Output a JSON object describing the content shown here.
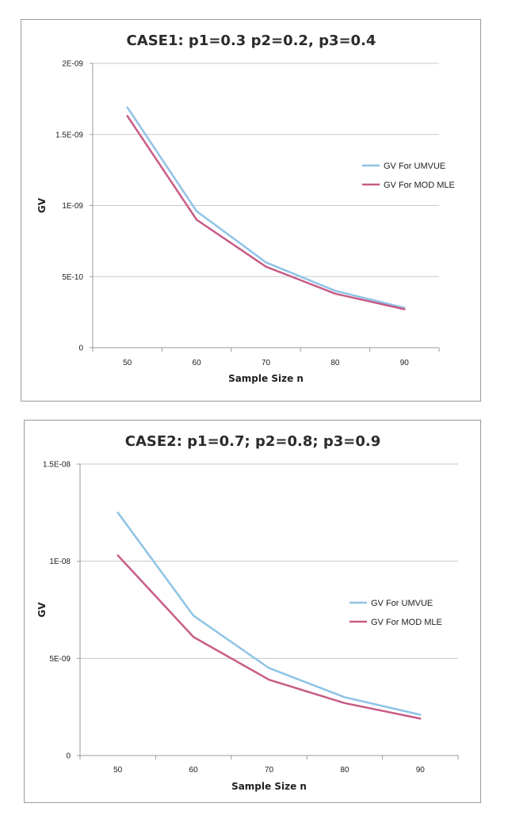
{
  "chart_data": [
    {
      "type": "line",
      "title": "CASE1: p1=0.3 p2=0.2, p3=0.4",
      "xlabel": "Sample Size n",
      "ylabel": "GV",
      "categories": [
        "50",
        "60",
        "70",
        "80",
        "90"
      ],
      "y_ticks": [
        0,
        5e-10,
        1e-09,
        1.5e-09,
        2e-09
      ],
      "y_tick_labels": [
        "0",
        "5E-10",
        "1E-09",
        "1.5E-09",
        "2E-09"
      ],
      "ylim": [
        0,
        2e-09
      ],
      "grid": true,
      "legend_position": "right",
      "series": [
        {
          "name": "GV For UMVUE",
          "color": "#8fc3e6",
          "values": [
            1.69e-09,
            9.6e-10,
            6e-10,
            4e-10,
            2.8e-10
          ]
        },
        {
          "name": "GV For MOD MLE",
          "color": "#c75b86",
          "values": [
            1.63e-09,
            9e-10,
            5.7e-10,
            3.8e-10,
            2.7e-10
          ]
        }
      ]
    },
    {
      "type": "line",
      "title": "CASE2: p1=0.7; p2=0.8; p3=0.9",
      "xlabel": "Sample Size n",
      "ylabel": "GV",
      "categories": [
        "50",
        "60",
        "70",
        "80",
        "90"
      ],
      "y_ticks": [
        0,
        5e-09,
        1e-08,
        1.5e-08
      ],
      "y_tick_labels": [
        "0",
        "5E-09",
        "1E-08",
        "1.5E-08"
      ],
      "ylim": [
        0,
        1.5e-08
      ],
      "grid": true,
      "legend_position": "right",
      "series": [
        {
          "name": "GV For UMVUE",
          "color": "#8fc3e6",
          "values": [
            1.25e-08,
            7.2e-09,
            4.5e-09,
            3e-09,
            2.1e-09
          ]
        },
        {
          "name": "GV For MOD MLE",
          "color": "#c75b86",
          "values": [
            1.03e-08,
            6.1e-09,
            3.9e-09,
            2.7e-09,
            1.9e-09
          ]
        }
      ]
    }
  ]
}
